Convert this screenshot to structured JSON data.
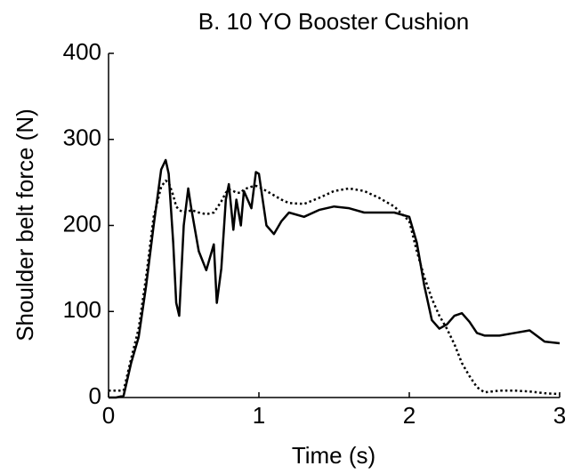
{
  "chart_data": {
    "type": "line",
    "title": "B. 10 YO Booster Cushion",
    "x_label": "Time (s)",
    "y_label": "Shoulder belt force (N)",
    "x": [
      0,
      0.05,
      0.1,
      0.15,
      0.2,
      0.25,
      0.3,
      0.35,
      0.38,
      0.4,
      0.43,
      0.45,
      0.47,
      0.5,
      0.53,
      0.55,
      0.6,
      0.65,
      0.7,
      0.72,
      0.75,
      0.78,
      0.8,
      0.83,
      0.85,
      0.88,
      0.9,
      0.95,
      0.98,
      1.0,
      1.05,
      1.1,
      1.15,
      1.2,
      1.3,
      1.4,
      1.5,
      1.6,
      1.7,
      1.8,
      1.9,
      2.0,
      2.05,
      2.1,
      2.15,
      2.2,
      2.25,
      2.3,
      2.35,
      2.4,
      2.45,
      2.5,
      2.6,
      2.7,
      2.8,
      2.9,
      3.0
    ],
    "series": [
      {
        "color": "#000000",
        "dash": "solid",
        "values": [
          0,
          0,
          2,
          40,
          70,
          130,
          200,
          265,
          276,
          260,
          180,
          110,
          95,
          200,
          243,
          220,
          170,
          148,
          178,
          110,
          150,
          230,
          248,
          195,
          230,
          200,
          240,
          220,
          262,
          260,
          200,
          190,
          205,
          215,
          210,
          218,
          222,
          220,
          215,
          215,
          215,
          210,
          180,
          130,
          90,
          80,
          85,
          95,
          98,
          88,
          75,
          72,
          72,
          75,
          78,
          65,
          63
        ]
      },
      {
        "color": "#000000",
        "dash": "dotted",
        "values": [
          8,
          8,
          8,
          45,
          80,
          140,
          210,
          245,
          252,
          250,
          235,
          222,
          218,
          215,
          216,
          218,
          215,
          213,
          215,
          220,
          228,
          238,
          242,
          240,
          238,
          238,
          242,
          245,
          246,
          245,
          240,
          235,
          230,
          226,
          225,
          232,
          240,
          243,
          240,
          232,
          222,
          205,
          170,
          140,
          115,
          95,
          80,
          62,
          40,
          25,
          12,
          6,
          8,
          8,
          7,
          5,
          4
        ]
      }
    ],
    "xlim": [
      0,
      3
    ],
    "xticks": [
      0,
      1,
      2,
      3
    ],
    "ylim": [
      0,
      400
    ],
    "yticks": [
      0,
      100,
      200,
      300,
      400
    ]
  }
}
